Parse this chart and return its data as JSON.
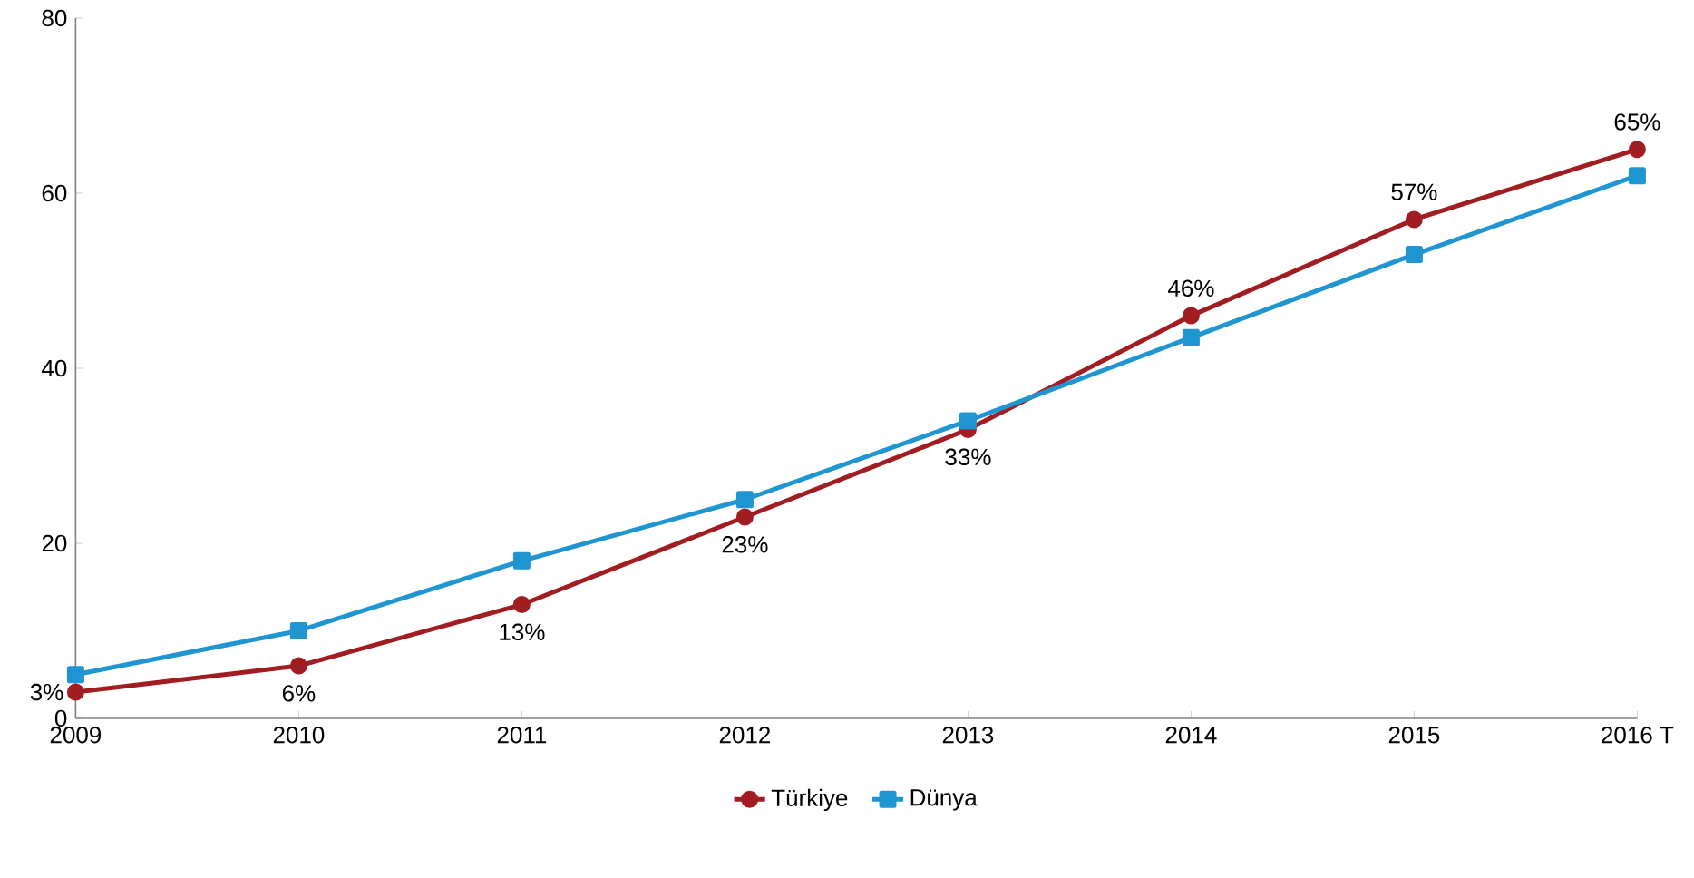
{
  "chart_data": {
    "type": "line",
    "categories": [
      "2009",
      "2010",
      "2011",
      "2012",
      "2013",
      "2014",
      "2015",
      "2016 T"
    ],
    "series": [
      {
        "name": "Türkiye",
        "color": "#a11d21",
        "marker": "circle",
        "values": [
          3,
          6,
          13,
          23,
          33,
          46,
          57,
          65
        ],
        "value_labels": [
          "3%",
          "6%",
          "13%",
          "23%",
          "33%",
          "46%",
          "57%",
          "65%"
        ]
      },
      {
        "name": "Dünya",
        "color": "#1f95d2",
        "marker": "square",
        "values": [
          5,
          10,
          18,
          25,
          34,
          43.5,
          53,
          62
        ]
      }
    ],
    "ylim": [
      0,
      80
    ],
    "yticks": [
      0,
      20,
      40,
      60,
      80
    ],
    "grid": false,
    "legend": "bottom",
    "line_style": "solid"
  }
}
